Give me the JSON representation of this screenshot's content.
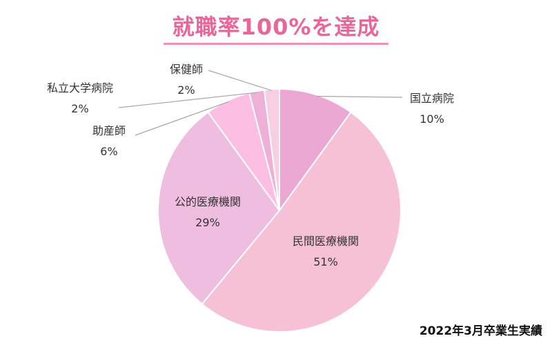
{
  "title": "就職率100%を達成",
  "footnote": "2022年3月卒業生実績",
  "chart_data": {
    "type": "pie",
    "start_angle_deg": 0,
    "direction": "clockwise",
    "slices": [
      {
        "label": "国立病院",
        "value": 10,
        "value_label": "10%",
        "color": "#eaa8d3"
      },
      {
        "label": "民間医療機関",
        "value": 51,
        "value_label": "51%",
        "color": "#f6c0d6"
      },
      {
        "label": "公的医療機関",
        "value": 29,
        "value_label": "29%",
        "color": "#efbde0"
      },
      {
        "label": "助産師",
        "value": 6,
        "value_label": "6%",
        "color": "#fcbfe3"
      },
      {
        "label": "私立大学病院",
        "value": 2,
        "value_label": "2%",
        "color": "#efb0d8"
      },
      {
        "label": "保健師",
        "value": 2,
        "value_label": "2%",
        "color": "#f8cfe2"
      }
    ]
  }
}
